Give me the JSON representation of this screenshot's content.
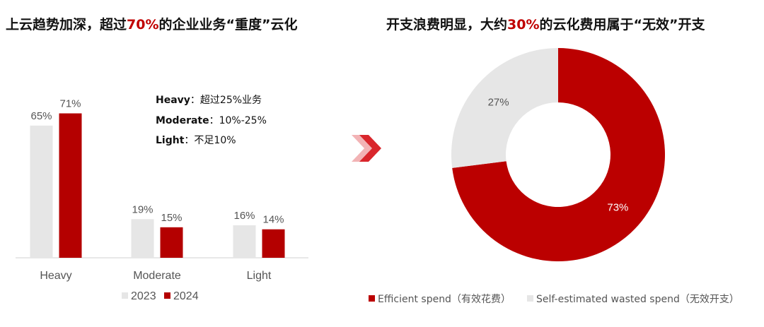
{
  "left_title": {
    "before": "上云趋势加深，超过",
    "highlight": "70%",
    "after": "的企业业务“重度”云化"
  },
  "right_title": {
    "before": "开支浪费明显，大约",
    "highlight": "30%",
    "after": "的云化费用属于“无效”开支"
  },
  "annotations": [
    {
      "key": "Heavy",
      "sep": "：",
      "text": "超过25%业务"
    },
    {
      "key": "Moderate",
      "sep": "：",
      "text": "10%-25%"
    },
    {
      "key": "Light",
      "sep": "：",
      "text": "不足10%"
    }
  ],
  "chart_data": [
    {
      "type": "bar",
      "categories": [
        "Heavy",
        "Moderate",
        "Light"
      ],
      "series": [
        {
          "name": "2023",
          "values": [
            65,
            19,
            16
          ],
          "labels": [
            "65%",
            "19%",
            "16%"
          ],
          "color": "#e6e6e6"
        },
        {
          "name": "2024",
          "values": [
            71,
            15,
            14
          ],
          "labels": [
            "71%",
            "15%",
            "14%"
          ],
          "color": "#b40000"
        }
      ],
      "ylim": [
        0,
        100
      ],
      "grid": false,
      "legend": "bottom"
    },
    {
      "type": "pie",
      "donut": true,
      "slices": [
        {
          "name": "Efficient spend（有效花费）",
          "value": 73,
          "label": "73%",
          "color": "#bb0000",
          "label_color": "#ffffff"
        },
        {
          "name": "Self-estimated wasted spend（无效开支）",
          "value": 27,
          "label": "27%",
          "color": "#e6e6e6",
          "label_color": "#555555"
        }
      ],
      "legend": "bottom"
    }
  ],
  "arrow_color": "#d9262c"
}
